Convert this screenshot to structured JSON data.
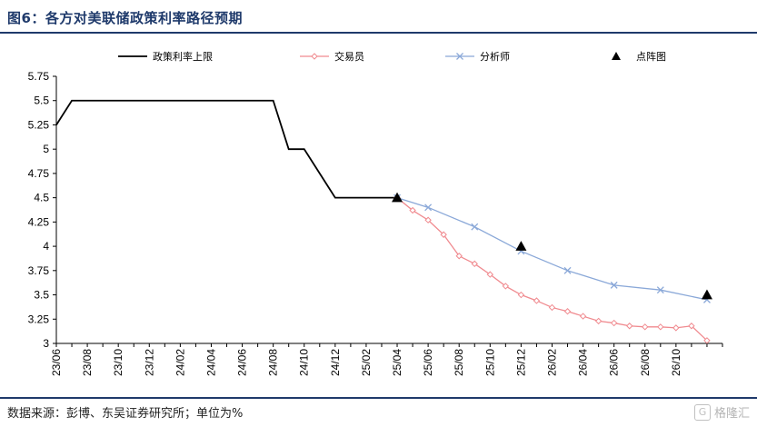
{
  "title": "图6：各方对美联储政策利率路径预期",
  "source": "数据来源：彭博、东吴证券研究所；单位为%",
  "watermark": {
    "icon": "G",
    "text": "格隆汇"
  },
  "colors": {
    "policy": "#000000",
    "traders": "#f08a8f",
    "analysts": "#8aa8d8",
    "dots": "#000000",
    "accent": "#1f3a6b"
  },
  "chart_data": {
    "type": "line",
    "title": "图6：各方对美联储政策利率路径预期",
    "ylim": [
      3,
      5.75
    ],
    "yticks": [
      3,
      3.25,
      3.5,
      3.75,
      4,
      4.25,
      4.5,
      4.75,
      5,
      5.25,
      5.5,
      5.75
    ],
    "ytick_labels": [
      "3",
      "3.25",
      "3.5",
      "3.75",
      "4",
      "4.25",
      "4.5",
      "4.75",
      "5",
      "5.25",
      "5.5",
      "5.75"
    ],
    "x_range": [
      "2023-06",
      "2026-12"
    ],
    "xtick_labels": [
      "23/06",
      "23/08",
      "23/10",
      "23/12",
      "24/02",
      "24/04",
      "24/06",
      "24/08",
      "24/10",
      "24/12",
      "25/02",
      "25/04",
      "25/06",
      "25/08",
      "25/10",
      "25/12",
      "26/02",
      "26/04",
      "26/06",
      "26/08",
      "26/10"
    ],
    "legend_position": "top",
    "grid": false,
    "series": [
      {
        "name": "政策利率上限",
        "marker": "none",
        "points": [
          [
            "2023-06",
            5.25
          ],
          [
            "2023-07",
            5.5
          ],
          [
            "2024-08",
            5.5
          ],
          [
            "2024-09",
            5.0
          ],
          [
            "2024-10",
            5.0
          ],
          [
            "2024-11",
            4.75
          ],
          [
            "2024-12",
            4.5
          ],
          [
            "2025-04",
            4.5
          ]
        ]
      },
      {
        "name": "交易员",
        "marker": "diamond",
        "points": [
          [
            "2025-04",
            4.5
          ],
          [
            "2025-05",
            4.37
          ],
          [
            "2025-06",
            4.27
          ],
          [
            "2025-07",
            4.12
          ],
          [
            "2025-08",
            3.9
          ],
          [
            "2025-09",
            3.82
          ],
          [
            "2025-10",
            3.71
          ],
          [
            "2025-11",
            3.59
          ],
          [
            "2025-12",
            3.5
          ],
          [
            "2026-01",
            3.44
          ],
          [
            "2026-02",
            3.37
          ],
          [
            "2026-03",
            3.33
          ],
          [
            "2026-04",
            3.28
          ],
          [
            "2026-05",
            3.23
          ],
          [
            "2026-06",
            3.21
          ],
          [
            "2026-07",
            3.18
          ],
          [
            "2026-08",
            3.17
          ],
          [
            "2026-09",
            3.17
          ],
          [
            "2026-10",
            3.16
          ],
          [
            "2026-11",
            3.18
          ],
          [
            "2026-12",
            3.03
          ]
        ]
      },
      {
        "name": "分析师",
        "marker": "x",
        "points": [
          [
            "2025-04",
            4.5
          ],
          [
            "2025-06",
            4.4
          ],
          [
            "2025-09",
            4.2
          ],
          [
            "2025-12",
            3.95
          ],
          [
            "2026-03",
            3.75
          ],
          [
            "2026-06",
            3.6
          ],
          [
            "2026-09",
            3.55
          ],
          [
            "2026-12",
            3.45
          ]
        ]
      },
      {
        "name": "点阵图",
        "marker": "triangle",
        "points": [
          [
            "2025-04",
            4.5
          ],
          [
            "2025-12",
            4.0
          ],
          [
            "2026-12",
            3.5
          ]
        ]
      }
    ]
  }
}
